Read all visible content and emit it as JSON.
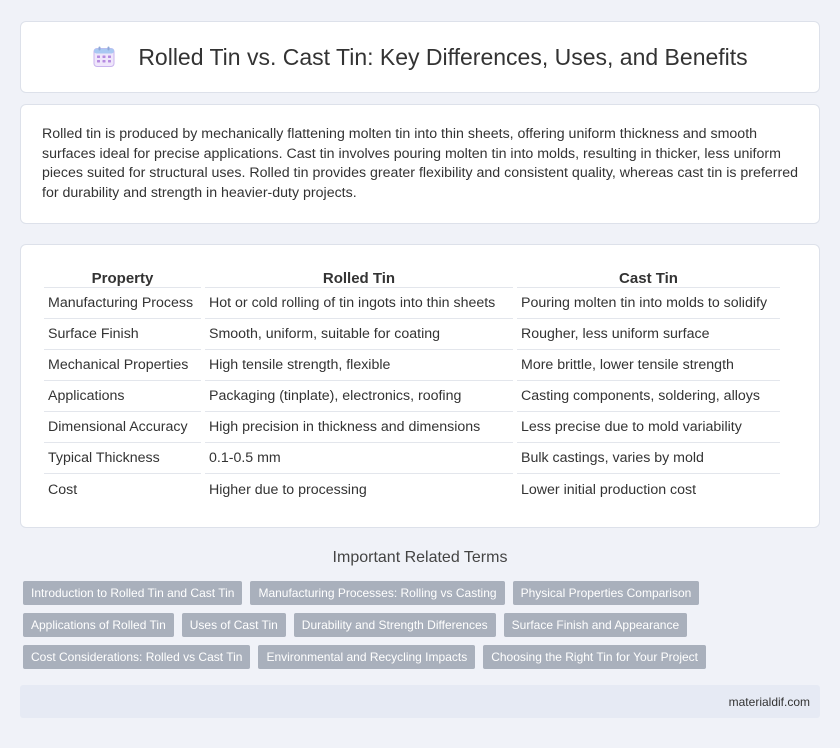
{
  "header": {
    "icon": "calendar-icon",
    "title": "Rolled Tin vs. Cast Tin: Key Differences, Uses, and Benefits"
  },
  "intro": {
    "text": "Rolled tin is produced by mechanically flattening molten tin into thin sheets, offering uniform thickness and smooth surfaces ideal for precise applications. Cast tin involves pouring molten tin into molds, resulting in thicker, less uniform pieces suited for structural uses. Rolled tin provides greater flexibility and consistent quality, whereas cast tin is preferred for durability and strength in heavier-duty projects."
  },
  "table": {
    "headers": [
      "Property",
      "Rolled Tin",
      "Cast Tin"
    ],
    "rows": [
      [
        "Manufacturing Process",
        "Hot or cold rolling of tin ingots into thin sheets",
        "Pouring molten tin into molds to solidify"
      ],
      [
        "Surface Finish",
        "Smooth, uniform, suitable for coating",
        "Rougher, less uniform surface"
      ],
      [
        "Mechanical Properties",
        "High tensile strength, flexible",
        "More brittle, lower tensile strength"
      ],
      [
        "Applications",
        "Packaging (tinplate), electronics, roofing",
        "Casting components, soldering, alloys"
      ],
      [
        "Dimensional Accuracy",
        "High precision in thickness and dimensions",
        "Less precise due to mold variability"
      ],
      [
        "Typical Thickness",
        "0.1-0.5 mm",
        "Bulk castings, varies by mold"
      ],
      [
        "Cost",
        "Higher due to processing",
        "Lower initial production cost"
      ]
    ]
  },
  "related": {
    "title": "Important Related Terms",
    "rows": [
      [
        "Introduction to Rolled Tin and Cast Tin",
        "Manufacturing Processes: Rolling vs Casting",
        "Physical Properties Comparison"
      ],
      [
        "Applications of Rolled Tin",
        "Uses of Cast Tin",
        "Durability and Strength Differences",
        "Surface Finish and Appearance"
      ],
      [
        "Cost Considerations: Rolled vs Cast Tin",
        "Environmental and Recycling Impacts",
        "Choosing the Right Tin for Your Project"
      ]
    ]
  },
  "footer": {
    "site": "materialdif.com"
  },
  "colors": {
    "background": "#f0f2f8",
    "tag": "#a9b0bc",
    "footer": "#e6eaf4",
    "icon_accent": "#a87cd9"
  }
}
